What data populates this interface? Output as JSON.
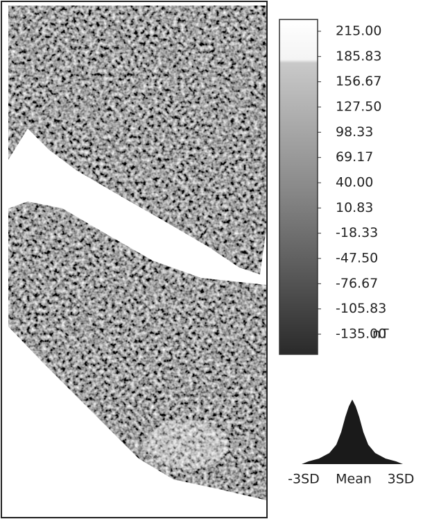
{
  "colorbar": {
    "ticks": [
      {
        "value": 215,
        "label": "215.00"
      },
      {
        "value": 185.83,
        "label": "185.83"
      },
      {
        "value": 156.67,
        "label": "156.67"
      },
      {
        "value": 127.5,
        "label": "127.50"
      },
      {
        "value": 98.33,
        "label": "98.33"
      },
      {
        "value": 69.17,
        "label": "69.17"
      },
      {
        "value": 40,
        "label": "40.00"
      },
      {
        "value": 10.83,
        "label": "10.83"
      },
      {
        "value": -18.33,
        "label": "-18.33"
      },
      {
        "value": -47.5,
        "label": "-47.50"
      },
      {
        "value": -76.67,
        "label": "-76.67"
      },
      {
        "value": -105.83,
        "label": "-105.83"
      },
      {
        "value": -135,
        "label": "-135.00"
      }
    ],
    "unit": "nT"
  },
  "histogram": {
    "labels": [
      "-3SD",
      "Mean",
      "3SD"
    ]
  }
}
